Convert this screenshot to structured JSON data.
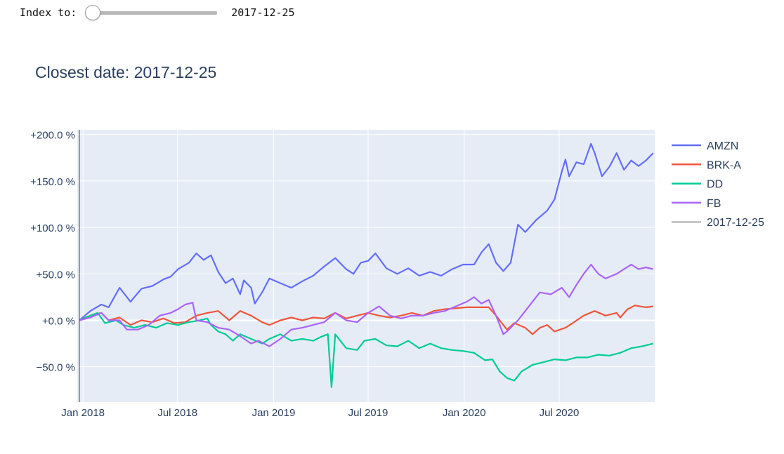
{
  "control": {
    "label": "Index to:",
    "slider_value": 0,
    "date": "2017-12-25"
  },
  "title": "Closest date: 2017-12-25",
  "colors": {
    "plot_bg": "#e5ecf6",
    "grid": "#ffffff",
    "axis_text": "#2a3f5f",
    "AMZN": "#636efa",
    "BRK-A": "#ef553b",
    "DD": "#00cc96",
    "FB": "#ab63fa",
    "vline": "#444444"
  },
  "chart_data": {
    "type": "line",
    "title": "Closest date: 2017-12-25",
    "xlabel": "",
    "ylabel": "",
    "x_range": [
      "2017-12-21",
      "2020-12-31"
    ],
    "ylim": [
      -88,
      205
    ],
    "x_ticks": [
      {
        "date": "2018-01-01",
        "label": "Jan 2018"
      },
      {
        "date": "2018-07-01",
        "label": "Jul 2018"
      },
      {
        "date": "2019-01-01",
        "label": "Jan 2019"
      },
      {
        "date": "2019-07-01",
        "label": "Jul 2019"
      },
      {
        "date": "2020-01-01",
        "label": "Jan 2020"
      },
      {
        "date": "2020-07-01",
        "label": "Jul 2020"
      }
    ],
    "y_ticks": [
      {
        "value": 200,
        "label": "+200.0 %"
      },
      {
        "value": 150,
        "label": "+150.0 %"
      },
      {
        "value": 100,
        "label": "+100.0 %"
      },
      {
        "value": 50,
        "label": "+50.0 %"
      },
      {
        "value": 0,
        "label": "+0.0 %"
      },
      {
        "value": -50,
        "label": "−50.0 %"
      }
    ],
    "grid": true,
    "legend_position": "right",
    "vline": {
      "date": "2017-12-25",
      "label": "2017-12-25"
    },
    "series": [
      {
        "name": "AMZN",
        "points": [
          [
            "2017-12-25",
            0
          ],
          [
            "2018-01-15",
            10
          ],
          [
            "2018-02-05",
            17
          ],
          [
            "2018-02-19",
            14
          ],
          [
            "2018-03-05",
            28
          ],
          [
            "2018-03-12",
            35
          ],
          [
            "2018-04-02",
            20
          ],
          [
            "2018-04-23",
            34
          ],
          [
            "2018-05-14",
            37
          ],
          [
            "2018-06-04",
            44
          ],
          [
            "2018-06-18",
            47
          ],
          [
            "2018-07-02",
            55
          ],
          [
            "2018-07-23",
            62
          ],
          [
            "2018-08-06",
            72
          ],
          [
            "2018-08-20",
            65
          ],
          [
            "2018-09-03",
            70
          ],
          [
            "2018-09-17",
            52
          ],
          [
            "2018-10-01",
            40
          ],
          [
            "2018-10-15",
            45
          ],
          [
            "2018-10-29",
            28
          ],
          [
            "2018-11-05",
            43
          ],
          [
            "2018-11-19",
            35
          ],
          [
            "2018-11-26",
            18
          ],
          [
            "2018-12-10",
            30
          ],
          [
            "2018-12-24",
            45
          ],
          [
            "2019-01-14",
            40
          ],
          [
            "2019-02-04",
            35
          ],
          [
            "2019-02-25",
            42
          ],
          [
            "2019-03-18",
            48
          ],
          [
            "2019-04-08",
            58
          ],
          [
            "2019-04-29",
            67
          ],
          [
            "2019-05-20",
            55
          ],
          [
            "2019-06-03",
            50
          ],
          [
            "2019-06-17",
            62
          ],
          [
            "2019-07-01",
            64
          ],
          [
            "2019-07-15",
            72
          ],
          [
            "2019-08-05",
            56
          ],
          [
            "2019-08-26",
            50
          ],
          [
            "2019-09-16",
            56
          ],
          [
            "2019-10-07",
            48
          ],
          [
            "2019-10-28",
            52
          ],
          [
            "2019-11-18",
            48
          ],
          [
            "2019-12-09",
            55
          ],
          [
            "2019-12-30",
            60
          ],
          [
            "2020-01-20",
            60
          ],
          [
            "2020-02-03",
            73
          ],
          [
            "2020-02-17",
            82
          ],
          [
            "2020-03-02",
            62
          ],
          [
            "2020-03-16",
            53
          ],
          [
            "2020-03-30",
            62
          ],
          [
            "2020-04-13",
            103
          ],
          [
            "2020-04-27",
            95
          ],
          [
            "2020-05-18",
            108
          ],
          [
            "2020-06-08",
            118
          ],
          [
            "2020-06-22",
            130
          ],
          [
            "2020-07-06",
            160
          ],
          [
            "2020-07-13",
            173
          ],
          [
            "2020-07-20",
            155
          ],
          [
            "2020-08-03",
            170
          ],
          [
            "2020-08-17",
            168
          ],
          [
            "2020-08-31",
            190
          ],
          [
            "2020-09-07",
            180
          ],
          [
            "2020-09-21",
            155
          ],
          [
            "2020-10-05",
            165
          ],
          [
            "2020-10-19",
            180
          ],
          [
            "2020-11-02",
            162
          ],
          [
            "2020-11-16",
            172
          ],
          [
            "2020-11-30",
            166
          ],
          [
            "2020-12-14",
            172
          ],
          [
            "2020-12-28",
            180
          ]
        ]
      },
      {
        "name": "BRK-A",
        "points": [
          [
            "2017-12-25",
            0
          ],
          [
            "2018-01-15",
            5
          ],
          [
            "2018-02-05",
            8
          ],
          [
            "2018-02-19",
            0
          ],
          [
            "2018-03-12",
            3
          ],
          [
            "2018-04-02",
            -5
          ],
          [
            "2018-04-23",
            0
          ],
          [
            "2018-05-14",
            -2
          ],
          [
            "2018-06-04",
            2
          ],
          [
            "2018-06-25",
            -3
          ],
          [
            "2018-07-16",
            -2
          ],
          [
            "2018-08-06",
            5
          ],
          [
            "2018-08-27",
            8
          ],
          [
            "2018-09-17",
            10
          ],
          [
            "2018-10-08",
            0
          ],
          [
            "2018-10-29",
            10
          ],
          [
            "2018-11-19",
            5
          ],
          [
            "2018-12-10",
            -2
          ],
          [
            "2018-12-24",
            -5
          ],
          [
            "2019-01-14",
            0
          ],
          [
            "2019-02-04",
            3
          ],
          [
            "2019-02-25",
            0
          ],
          [
            "2019-03-18",
            3
          ],
          [
            "2019-04-08",
            2
          ],
          [
            "2019-04-29",
            8
          ],
          [
            "2019-05-20",
            2
          ],
          [
            "2019-06-10",
            5
          ],
          [
            "2019-07-01",
            8
          ],
          [
            "2019-07-22",
            5
          ],
          [
            "2019-08-12",
            3
          ],
          [
            "2019-09-02",
            5
          ],
          [
            "2019-09-23",
            8
          ],
          [
            "2019-10-14",
            5
          ],
          [
            "2019-11-04",
            10
          ],
          [
            "2019-11-25",
            12
          ],
          [
            "2019-12-16",
            13
          ],
          [
            "2020-01-06",
            14
          ],
          [
            "2020-01-27",
            14
          ],
          [
            "2020-02-17",
            14
          ],
          [
            "2020-03-02",
            5
          ],
          [
            "2020-03-09",
            0
          ],
          [
            "2020-03-16",
            -5
          ],
          [
            "2020-03-23",
            -10
          ],
          [
            "2020-04-06",
            -3
          ],
          [
            "2020-04-27",
            -8
          ],
          [
            "2020-05-11",
            -15
          ],
          [
            "2020-05-25",
            -8
          ],
          [
            "2020-06-08",
            -5
          ],
          [
            "2020-06-22",
            -12
          ],
          [
            "2020-07-13",
            -8
          ],
          [
            "2020-07-27",
            -3
          ],
          [
            "2020-08-17",
            5
          ],
          [
            "2020-09-07",
            10
          ],
          [
            "2020-09-28",
            5
          ],
          [
            "2020-10-19",
            8
          ],
          [
            "2020-10-26",
            3
          ],
          [
            "2020-11-09",
            12
          ],
          [
            "2020-11-23",
            16
          ],
          [
            "2020-12-14",
            14
          ],
          [
            "2020-12-28",
            15
          ]
        ]
      },
      {
        "name": "DD",
        "points": [
          [
            "2017-12-25",
            0
          ],
          [
            "2018-01-15",
            5
          ],
          [
            "2018-01-29",
            8
          ],
          [
            "2018-02-12",
            -3
          ],
          [
            "2018-03-05",
            0
          ],
          [
            "2018-03-19",
            -5
          ],
          [
            "2018-04-09",
            -8
          ],
          [
            "2018-04-30",
            -5
          ],
          [
            "2018-05-21",
            -8
          ],
          [
            "2018-06-11",
            -3
          ],
          [
            "2018-07-02",
            -5
          ],
          [
            "2018-07-23",
            -2
          ],
          [
            "2018-08-13",
            0
          ],
          [
            "2018-08-27",
            2
          ],
          [
            "2018-09-03",
            -5
          ],
          [
            "2018-09-17",
            -12
          ],
          [
            "2018-10-01",
            -15
          ],
          [
            "2018-10-15",
            -22
          ],
          [
            "2018-10-29",
            -15
          ],
          [
            "2018-11-19",
            -20
          ],
          [
            "2018-12-10",
            -25
          ],
          [
            "2018-12-24",
            -20
          ],
          [
            "2019-01-14",
            -15
          ],
          [
            "2019-02-04",
            -22
          ],
          [
            "2019-02-25",
            -20
          ],
          [
            "2019-03-18",
            -22
          ],
          [
            "2019-04-01",
            -18
          ],
          [
            "2019-04-15",
            -15
          ],
          [
            "2019-04-22",
            -72
          ],
          [
            "2019-04-29",
            -15
          ],
          [
            "2019-05-20",
            -30
          ],
          [
            "2019-06-10",
            -32
          ],
          [
            "2019-06-24",
            -22
          ],
          [
            "2019-07-15",
            -20
          ],
          [
            "2019-08-05",
            -27
          ],
          [
            "2019-08-26",
            -28
          ],
          [
            "2019-09-16",
            -22
          ],
          [
            "2019-10-07",
            -30
          ],
          [
            "2019-10-28",
            -25
          ],
          [
            "2019-11-18",
            -30
          ],
          [
            "2019-12-09",
            -32
          ],
          [
            "2019-12-30",
            -33
          ],
          [
            "2020-01-20",
            -35
          ],
          [
            "2020-02-10",
            -43
          ],
          [
            "2020-02-24",
            -42
          ],
          [
            "2020-03-09",
            -55
          ],
          [
            "2020-03-23",
            -62
          ],
          [
            "2020-04-06",
            -65
          ],
          [
            "2020-04-20",
            -55
          ],
          [
            "2020-05-11",
            -48
          ],
          [
            "2020-06-01",
            -45
          ],
          [
            "2020-06-22",
            -42
          ],
          [
            "2020-07-13",
            -43
          ],
          [
            "2020-08-03",
            -40
          ],
          [
            "2020-08-24",
            -40
          ],
          [
            "2020-09-14",
            -37
          ],
          [
            "2020-10-05",
            -38
          ],
          [
            "2020-10-26",
            -35
          ],
          [
            "2020-11-16",
            -30
          ],
          [
            "2020-12-07",
            -28
          ],
          [
            "2020-12-28",
            -25
          ]
        ]
      },
      {
        "name": "FB",
        "points": [
          [
            "2017-12-25",
            0
          ],
          [
            "2018-01-15",
            3
          ],
          [
            "2018-02-05",
            8
          ],
          [
            "2018-02-19",
            0
          ],
          [
            "2018-03-12",
            0
          ],
          [
            "2018-03-26",
            -10
          ],
          [
            "2018-04-16",
            -10
          ],
          [
            "2018-05-07",
            -5
          ],
          [
            "2018-05-28",
            5
          ],
          [
            "2018-06-18",
            8
          ],
          [
            "2018-07-02",
            12
          ],
          [
            "2018-07-16",
            17
          ],
          [
            "2018-07-30",
            19
          ],
          [
            "2018-08-06",
            0
          ],
          [
            "2018-08-27",
            -2
          ],
          [
            "2018-09-17",
            -8
          ],
          [
            "2018-10-08",
            -10
          ],
          [
            "2018-10-29",
            -17
          ],
          [
            "2018-11-19",
            -25
          ],
          [
            "2018-12-03",
            -22
          ],
          [
            "2018-12-24",
            -28
          ],
          [
            "2019-01-14",
            -20
          ],
          [
            "2019-02-04",
            -10
          ],
          [
            "2019-02-25",
            -8
          ],
          [
            "2019-03-18",
            -5
          ],
          [
            "2019-04-08",
            -2
          ],
          [
            "2019-04-29",
            8
          ],
          [
            "2019-05-20",
            0
          ],
          [
            "2019-06-10",
            -2
          ],
          [
            "2019-07-01",
            8
          ],
          [
            "2019-07-22",
            15
          ],
          [
            "2019-08-12",
            5
          ],
          [
            "2019-09-02",
            2
          ],
          [
            "2019-09-23",
            5
          ],
          [
            "2019-10-14",
            5
          ],
          [
            "2019-11-04",
            8
          ],
          [
            "2019-11-25",
            10
          ],
          [
            "2019-12-16",
            15
          ],
          [
            "2020-01-06",
            20
          ],
          [
            "2020-01-20",
            25
          ],
          [
            "2020-02-03",
            18
          ],
          [
            "2020-02-17",
            22
          ],
          [
            "2020-03-02",
            5
          ],
          [
            "2020-03-16",
            -15
          ],
          [
            "2020-03-23",
            -12
          ],
          [
            "2020-04-13",
            0
          ],
          [
            "2020-05-04",
            15
          ],
          [
            "2020-05-25",
            30
          ],
          [
            "2020-06-15",
            28
          ],
          [
            "2020-07-06",
            35
          ],
          [
            "2020-07-20",
            25
          ],
          [
            "2020-08-03",
            38
          ],
          [
            "2020-08-17",
            50
          ],
          [
            "2020-08-31",
            60
          ],
          [
            "2020-09-14",
            50
          ],
          [
            "2020-09-28",
            45
          ],
          [
            "2020-10-19",
            50
          ],
          [
            "2020-11-02",
            55
          ],
          [
            "2020-11-16",
            60
          ],
          [
            "2020-11-30",
            55
          ],
          [
            "2020-12-14",
            57
          ],
          [
            "2020-12-28",
            55
          ]
        ]
      }
    ]
  }
}
